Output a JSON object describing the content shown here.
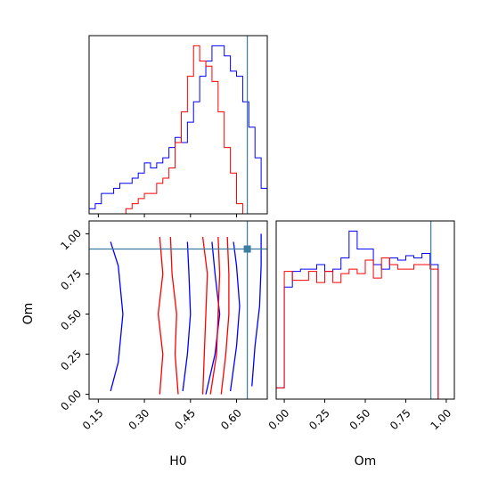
{
  "chart_data": [
    {
      "type": "histogram",
      "panel": "H0 marginal",
      "x_range": [
        0.12,
        0.7
      ],
      "truth_line": 0.635,
      "series": [
        {
          "color": "#0000ff",
          "bin_edges": [
            0.12,
            0.14,
            0.16,
            0.18,
            0.2,
            0.22,
            0.24,
            0.26,
            0.28,
            0.3,
            0.32,
            0.34,
            0.36,
            0.38,
            0.4,
            0.42,
            0.44,
            0.46,
            0.48,
            0.5,
            0.52,
            0.54,
            0.56,
            0.58,
            0.6,
            0.62,
            0.64,
            0.66,
            0.68,
            0.7
          ],
          "values": [
            1,
            2,
            4,
            4,
            5,
            6,
            6,
            7,
            8,
            10,
            9,
            10,
            11,
            13,
            15,
            14,
            18,
            22,
            27,
            30,
            33,
            33,
            31,
            28,
            27,
            22,
            17,
            11,
            5
          ]
        },
        {
          "color": "#ff0000",
          "bin_edges": [
            0.24,
            0.26,
            0.28,
            0.3,
            0.32,
            0.34,
            0.36,
            0.38,
            0.4,
            0.42,
            0.44,
            0.46,
            0.48,
            0.5,
            0.52,
            0.54,
            0.56,
            0.58,
            0.6,
            0.62,
            0.64
          ],
          "values": [
            1,
            2,
            3,
            4,
            4,
            6,
            7,
            9,
            14,
            20,
            27,
            33,
            30,
            29,
            26,
            20,
            13,
            8,
            2,
            0
          ]
        }
      ]
    },
    {
      "type": "contour",
      "panel": "H0 vs Om",
      "xlabel": "H0",
      "ylabel": "Om",
      "x_range": [
        0.12,
        0.7
      ],
      "y_range": [
        -0.03,
        1.08
      ],
      "x_ticks": [
        "0.15",
        "0.30",
        "0.45",
        "0.60"
      ],
      "y_ticks": [
        "0.00",
        "0.25",
        "0.50",
        "0.75",
        "1.00"
      ],
      "truth_point": {
        "x": 0.635,
        "y": 0.905
      },
      "series": [
        {
          "color": "#0000ff",
          "contours": [
            {
              "H0": [
                0.19,
                0.215,
                0.23,
                0.215,
                0.19
              ],
              "Om": [
                0.02,
                0.2,
                0.5,
                0.8,
                0.95
              ]
            },
            {
              "H0": [
                0.425,
                0.44,
                0.45,
                0.445,
                0.44
              ],
              "Om": [
                0.02,
                0.25,
                0.5,
                0.75,
                0.95
              ]
            },
            {
              "H0": [
                0.5,
                0.53,
                0.545,
                0.53,
                0.52
              ],
              "Om": [
                0.0,
                0.25,
                0.5,
                0.75,
                0.95
              ]
            },
            {
              "H0": [
                0.58,
                0.6,
                0.61,
                0.6,
                0.59
              ],
              "Om": [
                0.02,
                0.3,
                0.55,
                0.8,
                0.95
              ]
            },
            {
              "H0": [
                0.65,
                0.66,
                0.675,
                0.68,
                0.68
              ],
              "Om": [
                0.05,
                0.3,
                0.55,
                0.8,
                1.0
              ]
            }
          ]
        },
        {
          "color": "#ff0000",
          "contours": [
            {
              "H0": [
                0.35,
                0.36,
                0.345,
                0.36,
                0.35
              ],
              "Om": [
                0.0,
                0.25,
                0.5,
                0.75,
                0.98
              ]
            },
            {
              "H0": [
                0.41,
                0.4,
                0.405,
                0.39,
                0.385
              ],
              "Om": [
                0.0,
                0.25,
                0.5,
                0.75,
                0.98
              ]
            },
            {
              "H0": [
                0.49,
                0.495,
                0.5,
                0.505,
                0.49
              ],
              "Om": [
                0.0,
                0.25,
                0.5,
                0.75,
                0.98
              ]
            },
            {
              "H0": [
                0.515,
                0.535,
                0.54,
                0.545,
                0.54
              ],
              "Om": [
                0.0,
                0.25,
                0.5,
                0.75,
                0.98
              ]
            },
            {
              "H0": [
                0.55,
                0.565,
                0.575,
                0.575,
                0.57
              ],
              "Om": [
                0.0,
                0.25,
                0.5,
                0.75,
                0.98
              ]
            }
          ]
        }
      ]
    },
    {
      "type": "histogram",
      "panel": "Om marginal",
      "xlabel": "Om",
      "x_range": [
        -0.05,
        1.05
      ],
      "x_ticks": [
        "0.00",
        "0.25",
        "0.50",
        "0.75",
        "1.00"
      ],
      "truth_line": 0.905,
      "series": [
        {
          "color": "#0000ff",
          "bin_edges": [
            -0.05,
            0.0,
            0.05,
            0.1,
            0.15,
            0.2,
            0.25,
            0.3,
            0.35,
            0.4,
            0.45,
            0.5,
            0.55,
            0.6,
            0.65,
            0.7,
            0.75,
            0.8,
            0.85,
            0.9,
            0.95,
            1.0,
            1.05
          ],
          "values": [
            5,
            50,
            57,
            58,
            58,
            60,
            57,
            58,
            63,
            75,
            67,
            67,
            60,
            58,
            63,
            62,
            64,
            63,
            65,
            60,
            0,
            0
          ]
        },
        {
          "color": "#ff0000",
          "bin_edges": [
            -0.05,
            0.0,
            0.05,
            0.1,
            0.15,
            0.2,
            0.25,
            0.3,
            0.35,
            0.4,
            0.45,
            0.5,
            0.55,
            0.6,
            0.65,
            0.7,
            0.75,
            0.8,
            0.85,
            0.9,
            0.95,
            1.0,
            1.05
          ],
          "values": [
            5,
            57,
            53,
            53,
            57,
            52,
            57,
            52,
            56,
            58,
            56,
            62,
            54,
            63,
            60,
            58,
            58,
            60,
            60,
            58,
            0,
            0
          ]
        }
      ]
    }
  ]
}
